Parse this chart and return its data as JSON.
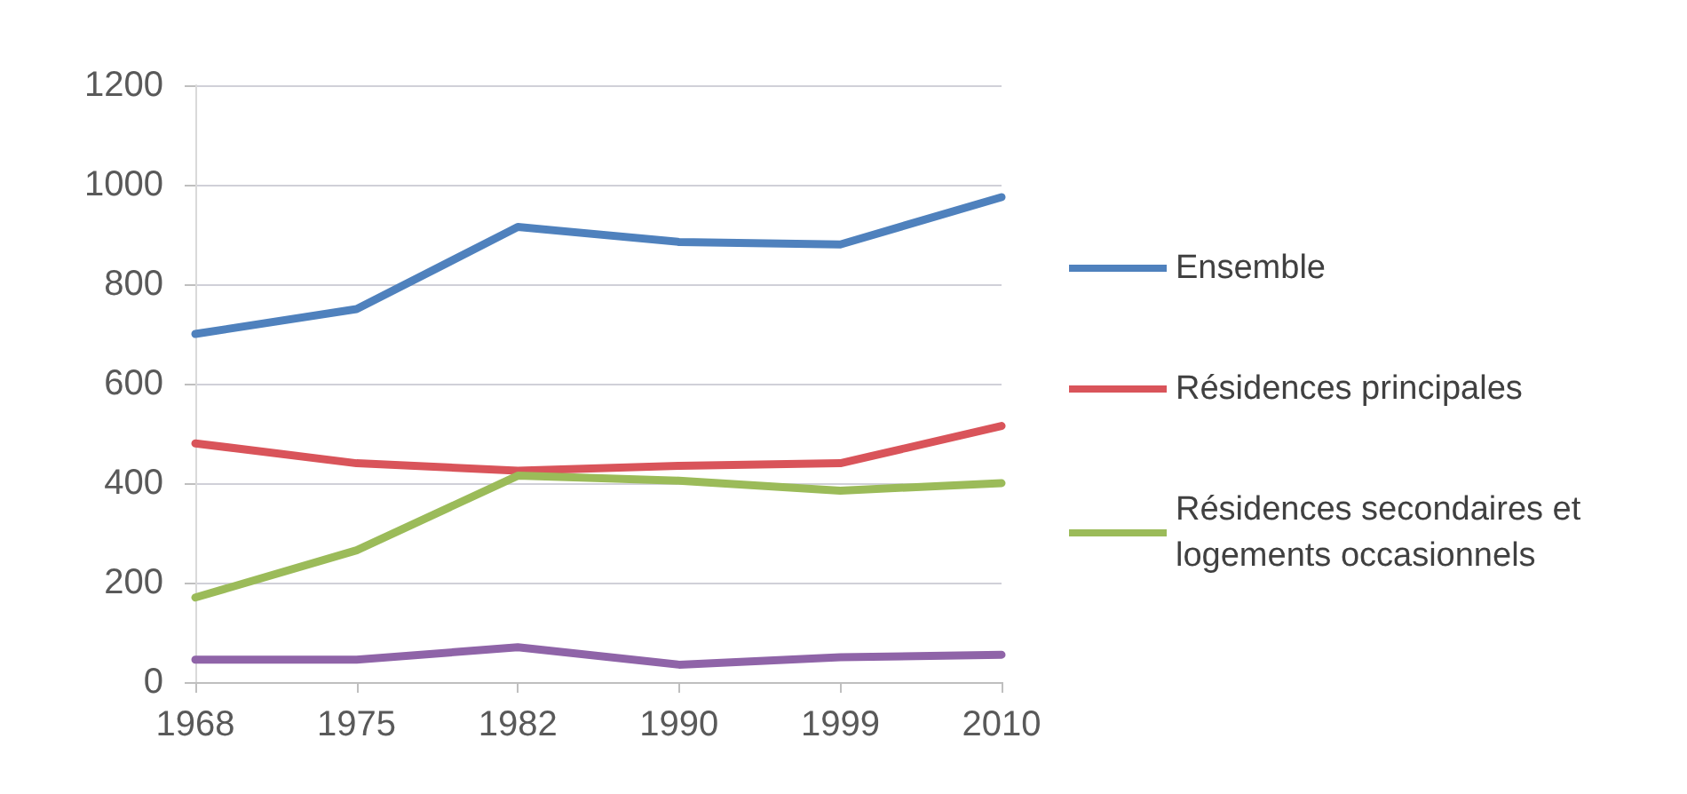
{
  "chart_data": {
    "type": "line",
    "categories": [
      "1968",
      "1975",
      "1982",
      "1990",
      "1999",
      "2010"
    ],
    "series": [
      {
        "name": "Ensemble",
        "color": "#4f81bd",
        "values": [
          700,
          750,
          915,
          885,
          880,
          975
        ]
      },
      {
        "name": "Résidences principales",
        "color": "#d9545a",
        "values": [
          480,
          440,
          425,
          435,
          440,
          515
        ]
      },
      {
        "name": "Résidences secondaires et logements occasionnels",
        "color": "#9bbb59",
        "values": [
          170,
          265,
          415,
          405,
          385,
          400
        ]
      },
      {
        "color": "#8f64a8",
        "values": [
          45,
          45,
          70,
          35,
          50,
          55
        ]
      }
    ],
    "ylim": [
      0,
      1200
    ],
    "yticks": [
      0,
      200,
      400,
      600,
      800,
      1000,
      1200
    ],
    "grid": "y",
    "legend": "right",
    "marker": "none",
    "line_style": "solid"
  }
}
